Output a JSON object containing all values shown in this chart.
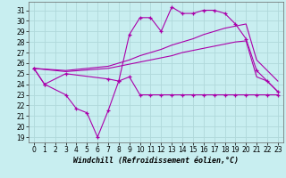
{
  "title": "",
  "xlabel": "Windchill (Refroidissement éolien,°C)",
  "ylabel": "",
  "bg_color": "#c8eef0",
  "grid_color": "#b0d8da",
  "line_color": "#aa00aa",
  "xlim": [
    -0.5,
    23.5
  ],
  "ylim": [
    18.5,
    31.8
  ],
  "xticks": [
    0,
    1,
    2,
    3,
    4,
    5,
    6,
    7,
    8,
    9,
    10,
    11,
    12,
    13,
    14,
    15,
    16,
    17,
    18,
    19,
    20,
    21,
    22,
    23
  ],
  "yticks": [
    19,
    20,
    21,
    22,
    23,
    24,
    25,
    26,
    27,
    28,
    29,
    30,
    31
  ],
  "line1_x": [
    0,
    1,
    3,
    7,
    8,
    9,
    10,
    11,
    12,
    13,
    14,
    15,
    16,
    17,
    18,
    19,
    20,
    21,
    22,
    23
  ],
  "line1_y": [
    25.5,
    24.0,
    25.0,
    24.5,
    24.3,
    28.7,
    30.3,
    30.3,
    29.0,
    31.3,
    30.7,
    30.7,
    31.0,
    31.0,
    30.7,
    29.7,
    28.3,
    25.3,
    24.3,
    23.3
  ],
  "line2_x": [
    0,
    3,
    7,
    8,
    9,
    10,
    11,
    12,
    13,
    14,
    15,
    16,
    17,
    18,
    19,
    20,
    21,
    22,
    23
  ],
  "line2_y": [
    25.5,
    25.3,
    25.7,
    26.0,
    26.3,
    26.7,
    27.0,
    27.3,
    27.7,
    28.0,
    28.3,
    28.7,
    29.0,
    29.3,
    29.5,
    29.7,
    26.3,
    25.3,
    24.3
  ],
  "line3_x": [
    0,
    3,
    7,
    8,
    9,
    10,
    11,
    12,
    13,
    14,
    15,
    16,
    17,
    18,
    19,
    20,
    21,
    22,
    23
  ],
  "line3_y": [
    25.5,
    25.2,
    25.5,
    25.7,
    25.9,
    26.1,
    26.3,
    26.5,
    26.7,
    27.0,
    27.2,
    27.4,
    27.6,
    27.8,
    28.0,
    28.1,
    24.7,
    24.3,
    23.3
  ],
  "line4_x": [
    0,
    1,
    3,
    4,
    5,
    6,
    7,
    8,
    9,
    10,
    11,
    12,
    13,
    14,
    15,
    16,
    17,
    18,
    19,
    20,
    21,
    22,
    23
  ],
  "line4_y": [
    25.5,
    24.0,
    23.0,
    21.7,
    21.3,
    19.0,
    21.5,
    24.3,
    24.7,
    23.0,
    23.0,
    23.0,
    23.0,
    23.0,
    23.0,
    23.0,
    23.0,
    23.0,
    23.0,
    23.0,
    23.0,
    23.0,
    23.0
  ],
  "tick_fontsize": 5.5,
  "xlabel_fontsize": 6.0
}
